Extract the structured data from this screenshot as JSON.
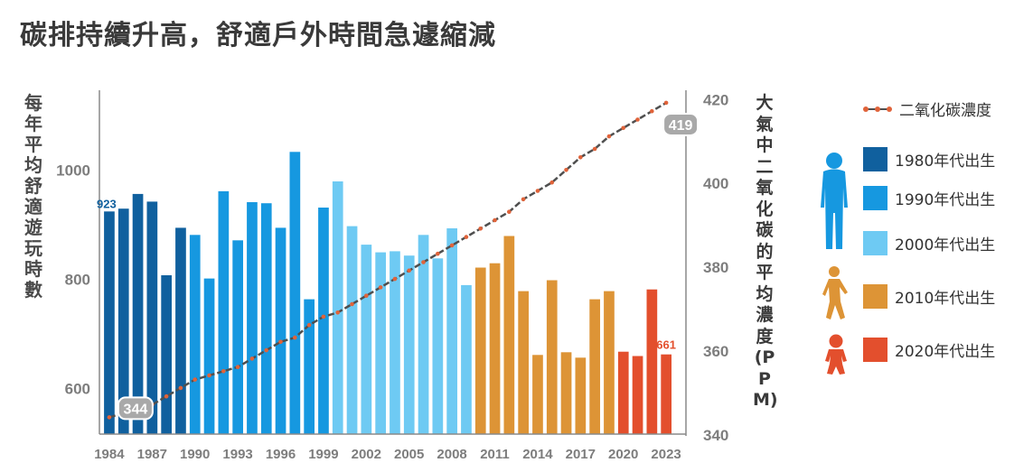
{
  "title": "碳排持續升高，舒適戶外時間急遽縮減",
  "chart_data": {
    "type": "bar",
    "title": "碳排持續升高，舒適戶外時間急遽縮減",
    "ylabel": "每年平均舒適遊玩時數",
    "y2label": "大氣中二氧化碳的平均濃度(PPM)",
    "ylim": [
      515,
      1145
    ],
    "y2lim": [
      340,
      422
    ],
    "yticks": [
      600,
      800,
      1000
    ],
    "y2ticks": [
      340,
      360,
      380,
      400,
      420
    ],
    "xticks": [
      "1984",
      "1987",
      "1990",
      "1993",
      "1996",
      "1999",
      "2002",
      "2005",
      "2008",
      "2011",
      "2014",
      "2017",
      "2020",
      "2023"
    ],
    "years": [
      1984,
      1985,
      1986,
      1987,
      1988,
      1989,
      1990,
      1991,
      1992,
      1993,
      1994,
      1995,
      1996,
      1997,
      1998,
      1999,
      2000,
      2001,
      2002,
      2003,
      2004,
      2005,
      2006,
      2007,
      2008,
      2009,
      2010,
      2011,
      2012,
      2013,
      2014,
      2015,
      2016,
      2017,
      2018,
      2019,
      2020,
      2021,
      2022,
      2023
    ],
    "hours": [
      923,
      928,
      955,
      941,
      806,
      893,
      880,
      800,
      960,
      870,
      940,
      938,
      893,
      1032,
      762,
      930,
      978,
      896,
      862,
      848,
      850,
      842,
      880,
      837,
      892,
      788,
      820,
      828,
      878,
      777,
      660,
      797,
      665,
      655,
      762,
      777,
      666,
      658,
      780,
      661
    ],
    "generation": [
      "1980",
      "1980",
      "1980",
      "1980",
      "1980",
      "1980",
      "1990",
      "1990",
      "1990",
      "1990",
      "1990",
      "1990",
      "1990",
      "1990",
      "1990",
      "1990",
      "2000",
      "2000",
      "2000",
      "2000",
      "2000",
      "2000",
      "2000",
      "2000",
      "2000",
      "2000",
      "2010",
      "2010",
      "2010",
      "2010",
      "2010",
      "2010",
      "2010",
      "2010",
      "2010",
      "2010",
      "2020",
      "2020",
      "2020",
      "2020"
    ],
    "co2": [
      344,
      345,
      346,
      347,
      349,
      351,
      353,
      354,
      355,
      356,
      358,
      360,
      362,
      363,
      366,
      368,
      369,
      371,
      373,
      375,
      377,
      379,
      381,
      383,
      385,
      387,
      389,
      391,
      393,
      396,
      398,
      400,
      403,
      406,
      408,
      411,
      413,
      415,
      417,
      419
    ],
    "colors": {
      "1980": "#10609e",
      "1990": "#1698e0",
      "2000": "#6ecaf3",
      "2010": "#dd9436",
      "2020": "#e34f2d"
    },
    "line_color": "#4f4f4f",
    "point_color": "#e0633a",
    "first_bar_label": "923",
    "last_bar_label": "661",
    "co2_start_label": "344",
    "co2_end_label": "419"
  },
  "legend": {
    "line_label": "二氧化碳濃度",
    "items": [
      {
        "label": "1980年代出生",
        "color": "#10609e"
      },
      {
        "label": "1990年代出生",
        "color": "#1698e0"
      },
      {
        "label": "2000年代出生",
        "color": "#6ecaf3"
      },
      {
        "label": "2010年代出生",
        "color": "#dd9436"
      },
      {
        "label": "2020年代出生",
        "color": "#e34f2d"
      }
    ]
  }
}
